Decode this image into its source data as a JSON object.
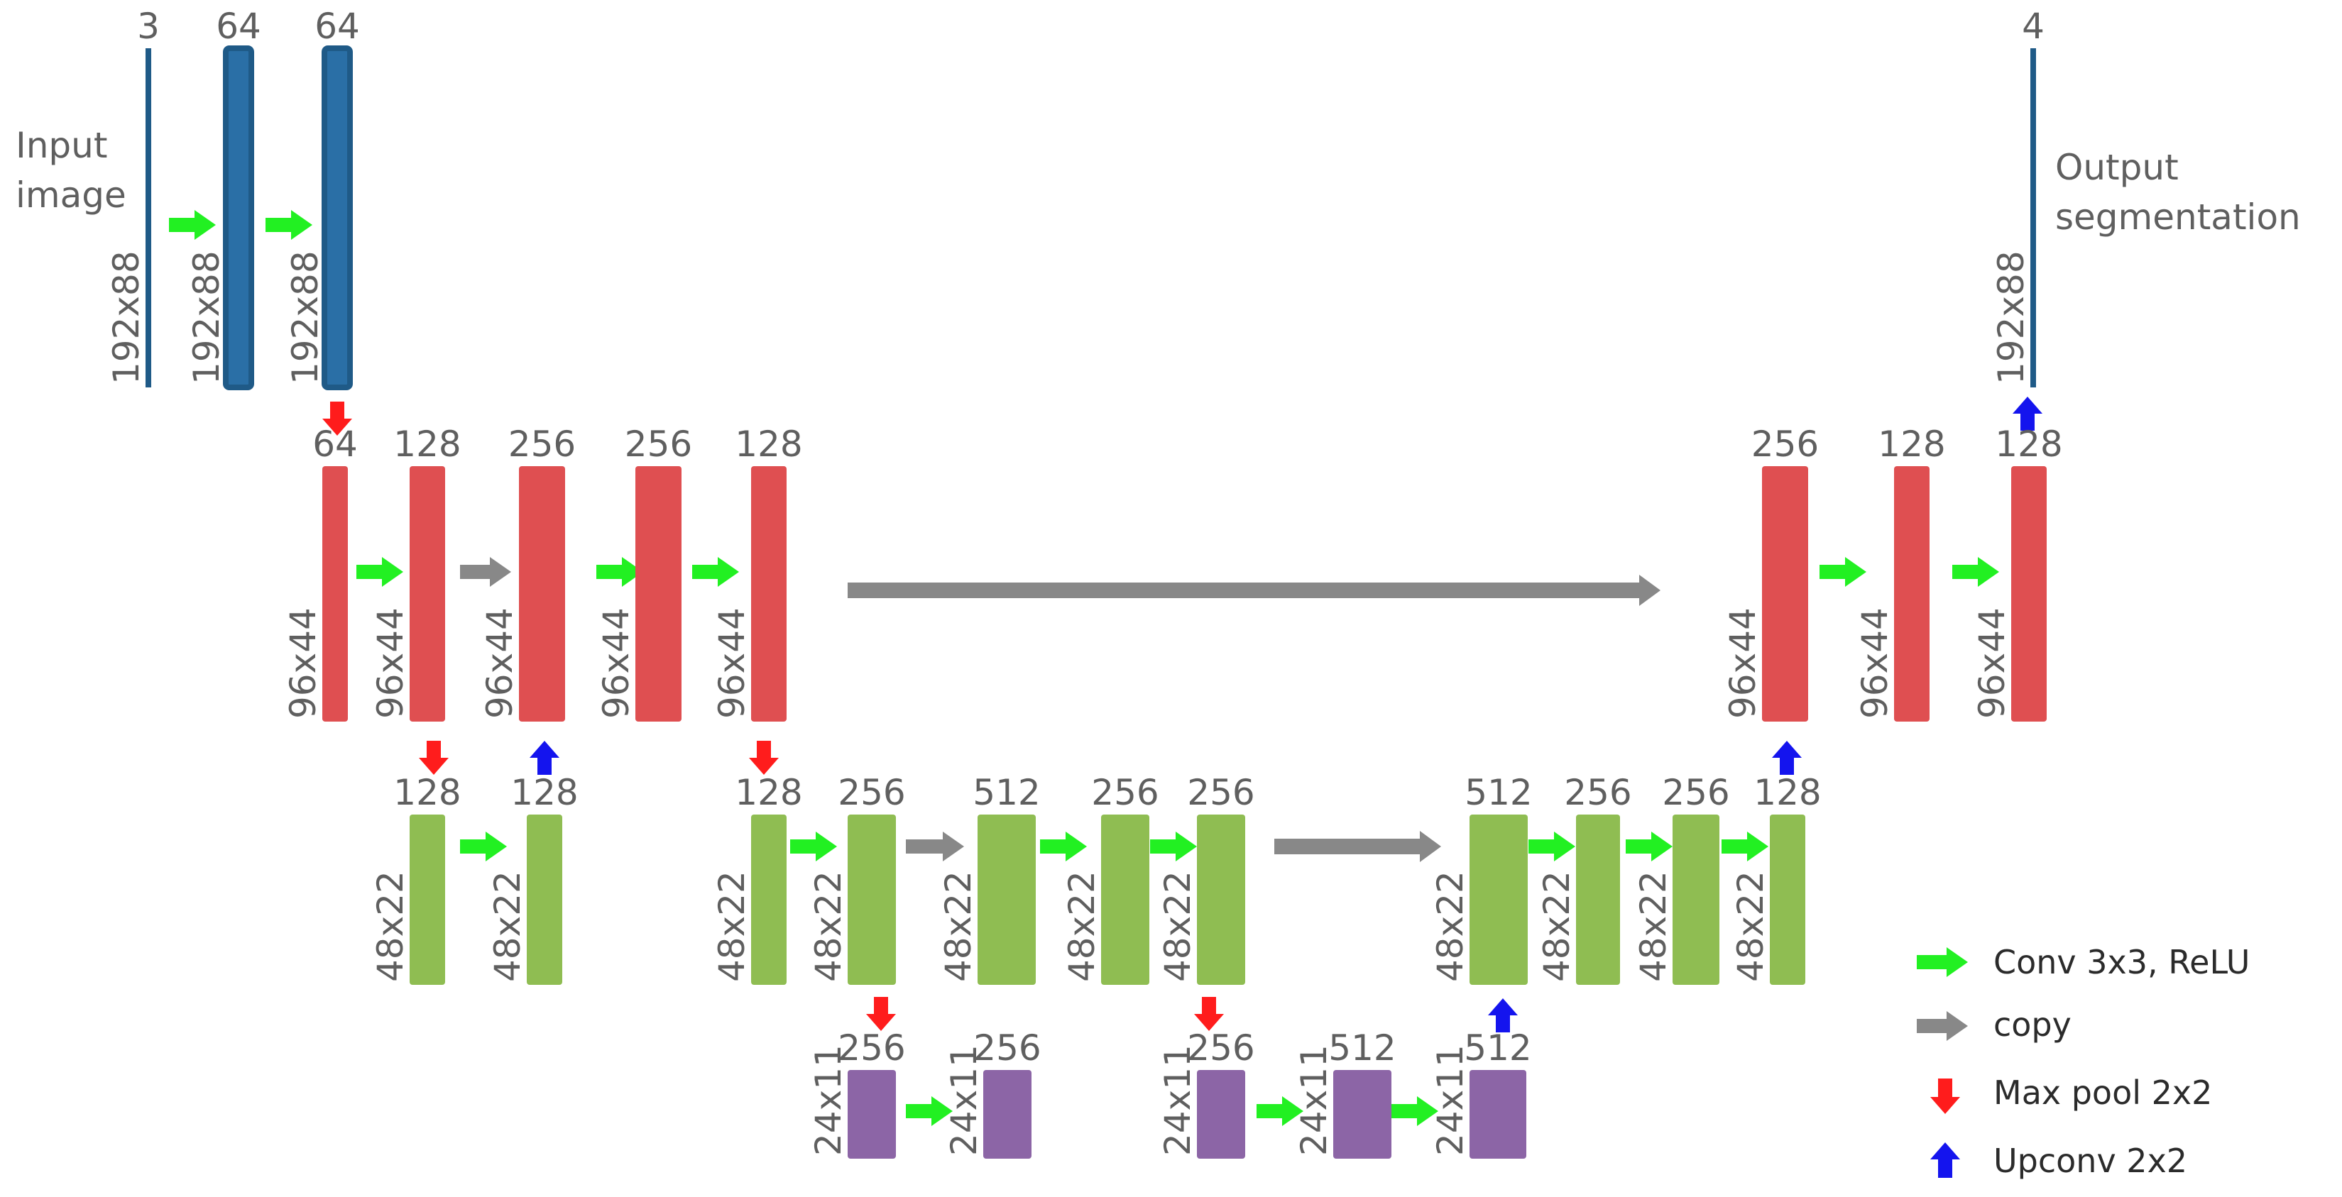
{
  "input_label": [
    "Input",
    "image"
  ],
  "output_label": [
    "Output",
    "segmentation"
  ],
  "colors": {
    "blue": "#2a6fa6",
    "blue_dark": "#1f5a87",
    "red": "#df4f51",
    "green": "#8fbd52",
    "purple": "#8c65a6",
    "conv_arrow": "#22f022",
    "copy_arrow": "#888888",
    "pool_arrow": "#ff1c1c",
    "upconv_arrow": "#1414ee"
  },
  "blocks": [
    {
      "id": "in0",
      "channels": "3",
      "size": "192x88",
      "color": "blue"
    },
    {
      "id": "in1",
      "channels": "64",
      "size": "192x88",
      "color": "blue"
    },
    {
      "id": "in2",
      "channels": "64",
      "size": "192x88",
      "color": "blue"
    },
    {
      "id": "out0",
      "channels": "4",
      "size": "192x88",
      "color": "blue"
    },
    {
      "id": "r0",
      "channels": "64",
      "size": "96x44",
      "color": "red"
    },
    {
      "id": "r1",
      "channels": "128",
      "size": "96x44",
      "color": "red"
    },
    {
      "id": "r2",
      "channels": "256",
      "size": "96x44",
      "color": "red"
    },
    {
      "id": "r3",
      "channels": "256",
      "size": "96x44",
      "color": "red"
    },
    {
      "id": "r4",
      "channels": "128",
      "size": "96x44",
      "color": "red"
    },
    {
      "id": "r5",
      "channels": "256",
      "size": "96x44",
      "color": "red"
    },
    {
      "id": "r6",
      "channels": "128",
      "size": "96x44",
      "color": "red"
    },
    {
      "id": "r7",
      "channels": "128",
      "size": "96x44",
      "color": "red"
    },
    {
      "id": "g0",
      "channels": "128",
      "size": "48x22",
      "color": "green"
    },
    {
      "id": "g1",
      "channels": "128",
      "size": "48x22",
      "color": "green"
    },
    {
      "id": "g2",
      "channels": "128",
      "size": "48x22",
      "color": "green"
    },
    {
      "id": "g3",
      "channels": "256",
      "size": "48x22",
      "color": "green"
    },
    {
      "id": "g4",
      "channels": "512",
      "size": "48x22",
      "color": "green"
    },
    {
      "id": "g5",
      "channels": "256",
      "size": "48x22",
      "color": "green"
    },
    {
      "id": "g6",
      "channels": "256",
      "size": "48x22",
      "color": "green"
    },
    {
      "id": "g7",
      "channels": "512",
      "size": "48x22",
      "color": "green"
    },
    {
      "id": "g8",
      "channels": "256",
      "size": "48x22",
      "color": "green"
    },
    {
      "id": "g9",
      "channels": "256",
      "size": "48x22",
      "color": "green"
    },
    {
      "id": "g10",
      "channels": "128",
      "size": "48x22",
      "color": "green"
    },
    {
      "id": "p0",
      "channels": "256",
      "size": "24x11",
      "color": "purple"
    },
    {
      "id": "p1",
      "channels": "256",
      "size": "24x11",
      "color": "purple"
    },
    {
      "id": "p2",
      "channels": "256",
      "size": "24x11",
      "color": "purple"
    },
    {
      "id": "p3",
      "channels": "512",
      "size": "24x11",
      "color": "purple"
    },
    {
      "id": "p4",
      "channels": "512",
      "size": "24x11",
      "color": "purple"
    }
  ],
  "legend": [
    {
      "arrow": "conv",
      "label": "Conv 3x3, ReLU"
    },
    {
      "arrow": "copy",
      "label": "copy"
    },
    {
      "arrow": "pool",
      "label": "Max pool 2x2"
    },
    {
      "arrow": "upconv",
      "label": "Upconv 2x2"
    }
  ]
}
